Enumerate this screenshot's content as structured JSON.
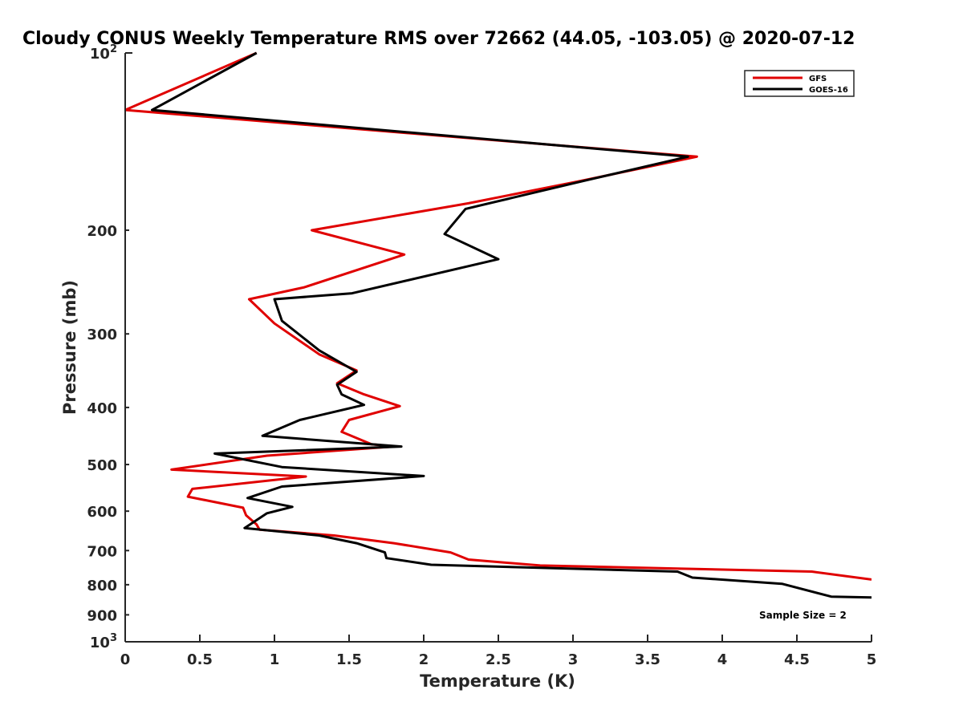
{
  "chart_data": {
    "type": "line",
    "title": "Cloudy CONUS Weekly Temperature RMS over 72662 (44.05, -103.05) @ 2020-07-12",
    "xlabel": "Temperature (K)",
    "ylabel": "Pressure (mb)",
    "xlim": [
      0,
      5
    ],
    "ylim": [
      100,
      1000
    ],
    "y_scale": "log",
    "y_reversed": true,
    "x_ticks": [
      "0",
      "0.5",
      "1",
      "1.5",
      "2",
      "2.5",
      "3",
      "3.5",
      "4",
      "4.5",
      "5"
    ],
    "y_ticks": [
      {
        "value": 100,
        "base": "10",
        "exp": "2"
      },
      {
        "value": 200,
        "label": "200"
      },
      {
        "value": 300,
        "label": "300"
      },
      {
        "value": 400,
        "label": "400"
      },
      {
        "value": 500,
        "label": "500"
      },
      {
        "value": 600,
        "label": "600"
      },
      {
        "value": 700,
        "label": "700"
      },
      {
        "value": 800,
        "label": "800"
      },
      {
        "value": 900,
        "label": "900"
      },
      {
        "value": 1000,
        "base": "10",
        "exp": "3"
      }
    ],
    "legend_position": "top-right",
    "annotation": "Sample Size = 2",
    "series": [
      {
        "name": "GFS",
        "color": "#e00000",
        "points": [
          [
            0.88,
            100
          ],
          [
            0.0,
            125
          ],
          [
            3.83,
            150
          ],
          [
            3.05,
            165
          ],
          [
            2.3,
            180
          ],
          [
            1.25,
            200
          ],
          [
            1.87,
            220
          ],
          [
            1.2,
            250
          ],
          [
            0.83,
            262
          ],
          [
            1.0,
            288
          ],
          [
            1.3,
            325
          ],
          [
            1.55,
            346
          ],
          [
            1.42,
            364
          ],
          [
            1.6,
            380
          ],
          [
            1.84,
            398
          ],
          [
            1.5,
            420
          ],
          [
            1.45,
            440
          ],
          [
            1.65,
            462
          ],
          [
            1.8,
            466
          ],
          [
            0.95,
            483
          ],
          [
            0.31,
            510
          ],
          [
            1.21,
            524
          ],
          [
            0.45,
            550
          ],
          [
            0.42,
            567
          ],
          [
            0.79,
            592
          ],
          [
            0.81,
            610
          ],
          [
            0.88,
            632
          ],
          [
            0.9,
            645
          ],
          [
            1.4,
            660
          ],
          [
            1.8,
            680
          ],
          [
            2.18,
            705
          ],
          [
            2.3,
            725
          ],
          [
            2.78,
            742
          ],
          [
            3.7,
            751
          ],
          [
            4.6,
            760
          ],
          [
            5.0,
            784
          ]
        ]
      },
      {
        "name": "GOES-16",
        "color": "#000000",
        "points": [
          [
            0.88,
            100
          ],
          [
            0.18,
            125
          ],
          [
            3.77,
            150
          ],
          [
            3.07,
            165
          ],
          [
            2.28,
            184
          ],
          [
            2.14,
            203
          ],
          [
            2.5,
            224
          ],
          [
            1.52,
            256
          ],
          [
            1.0,
            262
          ],
          [
            1.05,
            285
          ],
          [
            1.3,
            320
          ],
          [
            1.55,
            348
          ],
          [
            1.42,
            366
          ],
          [
            1.45,
            380
          ],
          [
            1.6,
            396
          ],
          [
            1.17,
            420
          ],
          [
            0.92,
            447
          ],
          [
            1.85,
            466
          ],
          [
            0.6,
            479
          ],
          [
            1.05,
            505
          ],
          [
            2.0,
            523
          ],
          [
            1.05,
            545
          ],
          [
            0.82,
            570
          ],
          [
            1.12,
            590
          ],
          [
            0.95,
            605
          ],
          [
            0.8,
            641
          ],
          [
            1.3,
            660
          ],
          [
            1.55,
            680
          ],
          [
            1.74,
            705
          ],
          [
            1.75,
            721
          ],
          [
            2.05,
            740
          ],
          [
            3.7,
            760
          ],
          [
            3.8,
            778
          ],
          [
            4.4,
            797
          ],
          [
            4.73,
            838
          ],
          [
            5.0,
            841
          ]
        ]
      }
    ]
  }
}
